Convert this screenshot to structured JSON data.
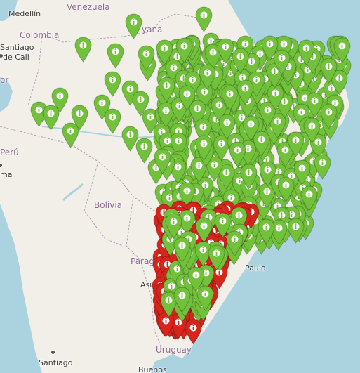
{
  "map": {
    "country_labels": [
      {
        "key": "venezuela",
        "text": "Venezuela"
      },
      {
        "key": "colombia",
        "text": "Colombia"
      },
      {
        "key": "peru",
        "text": "Perú"
      },
      {
        "key": "bolivia",
        "text": "Bolivia"
      },
      {
        "key": "paraguay",
        "text": "Paraguay"
      },
      {
        "key": "uruguay",
        "text": "Uruguay"
      },
      {
        "key": "guyana",
        "text": "yana"
      },
      {
        "key": "ecuador",
        "text": "or"
      }
    ],
    "city_labels": [
      {
        "key": "medellin",
        "text": "Medellín"
      },
      {
        "key": "santiago-de-cali",
        "text": "Santiago"
      },
      {
        "key": "cali",
        "text": "de Cali"
      },
      {
        "key": "lima",
        "text": "ma"
      },
      {
        "key": "asuncion",
        "text": "Asunción"
      },
      {
        "key": "sao-paulo",
        "text": "Paulo"
      },
      {
        "key": "santiago",
        "text": "Santiago"
      },
      {
        "key": "buenos-aires",
        "text": "Buenos"
      }
    ],
    "marker_icon": "info-icon",
    "colors": {
      "green_marker": "#72c13b",
      "red_marker": "#d7251b",
      "water": "#aad3df",
      "land": "#f2efe9",
      "border": "#b49ab4"
    },
    "markers_visible": {
      "green": "many",
      "red": "many"
    }
  }
}
